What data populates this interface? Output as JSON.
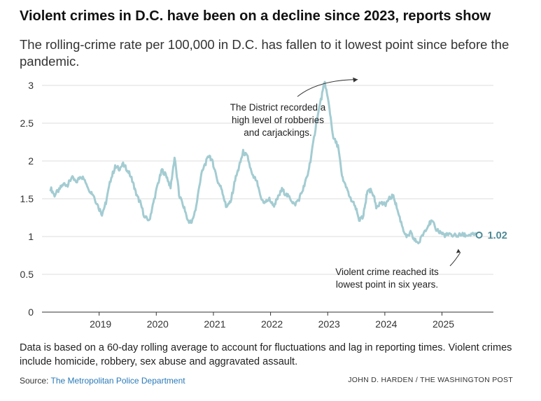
{
  "title": "Violent crimes in D.C. have been on a decline since 2023, reports show",
  "subtitle": "The rolling-crime rate per 100,000 in D.C. has fallen to it lowest point since before the pandemic.",
  "note": "Data is based on a 60-day rolling average to account for fluctuations and lag in reporting times. Violent crimes include homicide, robbery, sex abuse and aggravated assault.",
  "source_label": "Source:",
  "source_link": "The Metropolitan Police Department",
  "credit": "JOHN D. HARDEN / THE WASHINGTON POST",
  "colors": {
    "line": "#a3ccd2",
    "end_label": "#4e8a96",
    "grid": "#dddddd",
    "axis": "#333333"
  },
  "chart_data": {
    "type": "line",
    "title": "Violent crimes in D.C. have been on a decline since 2023, reports show",
    "xlabel": "",
    "ylabel": "",
    "xlim": [
      2018.0,
      2025.9
    ],
    "ylim": [
      0,
      3
    ],
    "y_ticks": [
      0,
      0.5,
      1,
      1.5,
      2,
      2.5,
      3
    ],
    "x_ticks": [
      2019,
      2020,
      2021,
      2022,
      2023,
      2024,
      2025
    ],
    "grid": true,
    "series": [
      {
        "name": "Violent crime rate per 100,000 (60-day rolling average)",
        "x": [
          2018.15,
          2018.22,
          2018.3,
          2018.38,
          2018.45,
          2018.52,
          2018.6,
          2018.68,
          2018.75,
          2018.83,
          2018.9,
          2018.98,
          2019.05,
          2019.12,
          2019.2,
          2019.28,
          2019.35,
          2019.42,
          2019.5,
          2019.58,
          2019.65,
          2019.72,
          2019.8,
          2019.88,
          2019.95,
          2020.03,
          2020.1,
          2020.18,
          2020.25,
          2020.32,
          2020.4,
          2020.48,
          2020.55,
          2020.62,
          2020.7,
          2020.78,
          2020.85,
          2020.93,
          2021.0,
          2021.08,
          2021.15,
          2021.22,
          2021.3,
          2021.38,
          2021.45,
          2021.52,
          2021.6,
          2021.68,
          2021.75,
          2021.83,
          2021.9,
          2021.98,
          2022.05,
          2022.12,
          2022.2,
          2022.28,
          2022.35,
          2022.42,
          2022.5,
          2022.58,
          2022.65,
          2022.72,
          2022.8,
          2022.88,
          2022.95,
          2023.03,
          2023.1,
          2023.18,
          2023.25,
          2023.32,
          2023.4,
          2023.48,
          2023.55,
          2023.62,
          2023.66,
          2023.7,
          2023.78,
          2023.85,
          2023.92,
          2024.0,
          2024.08,
          2024.15,
          2024.22,
          2024.3,
          2024.38,
          2024.45,
          2024.52,
          2024.6,
          2024.68,
          2024.75,
          2024.82,
          2024.9,
          2024.98,
          2025.05,
          2025.12,
          2025.2,
          2025.28,
          2025.35,
          2025.42,
          2025.5,
          2025.58,
          2025.65
        ],
        "y": [
          1.64,
          1.55,
          1.62,
          1.7,
          1.68,
          1.78,
          1.72,
          1.8,
          1.75,
          1.62,
          1.55,
          1.4,
          1.3,
          1.45,
          1.75,
          1.92,
          1.9,
          1.95,
          1.88,
          1.75,
          1.55,
          1.45,
          1.25,
          1.22,
          1.45,
          1.7,
          1.88,
          1.8,
          1.65,
          2.05,
          1.55,
          1.4,
          1.22,
          1.18,
          1.4,
          1.8,
          1.95,
          2.08,
          1.95,
          1.72,
          1.62,
          1.4,
          1.45,
          1.75,
          1.92,
          2.12,
          2.05,
          1.8,
          1.75,
          1.5,
          1.45,
          1.5,
          1.4,
          1.5,
          1.62,
          1.55,
          1.5,
          1.42,
          1.5,
          1.65,
          1.82,
          2.1,
          2.5,
          2.8,
          3.05,
          2.7,
          2.3,
          2.2,
          1.8,
          1.65,
          1.5,
          1.4,
          1.22,
          1.25,
          1.45,
          1.62,
          1.6,
          1.4,
          1.45,
          1.42,
          1.5,
          1.55,
          1.35,
          1.15,
          0.98,
          1.05,
          0.95,
          0.92,
          1.05,
          1.15,
          1.2,
          1.1,
          1.05,
          1.02,
          1.02,
          1.02,
          1.02,
          1.02,
          1.02,
          1.02,
          1.02,
          1.02
        ]
      }
    ],
    "end_value_label": "1.02",
    "annotations": [
      {
        "text_lines": [
          "The District recorded a",
          "high level of robberies",
          "and carjackings."
        ],
        "points_to": [
          2023.6,
          3.05
        ]
      },
      {
        "text_lines": [
          "Violent crime reached its",
          "lowest point in six years."
        ],
        "points_to": [
          2025.2,
          0.92
        ]
      }
    ]
  }
}
